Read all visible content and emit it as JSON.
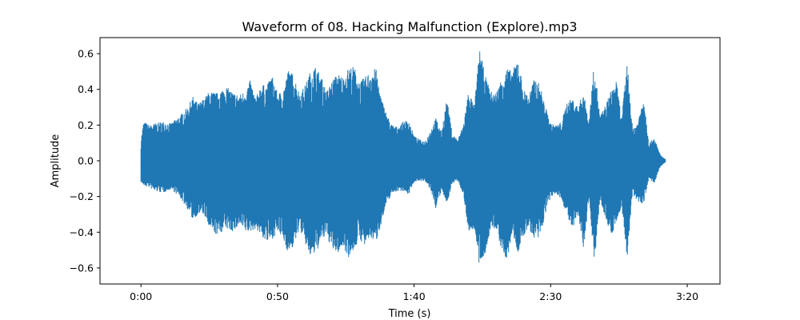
{
  "chart_data": {
    "type": "line",
    "title": "Waveform of 08. Hacking Malfunction (Explore).mp3",
    "xlabel": "Time (s)",
    "ylabel": "Amplitude",
    "xlim": [
      -15,
      212
    ],
    "ylim": [
      -0.69,
      0.69
    ],
    "line_color": "#1f77b4",
    "grid": false,
    "x_ticks": [
      {
        "value": 0,
        "label": "0:00"
      },
      {
        "value": 50,
        "label": "0:50"
      },
      {
        "value": 100,
        "label": "1:40"
      },
      {
        "value": 150,
        "label": "2:30"
      },
      {
        "value": 200,
        "label": "3:20"
      }
    ],
    "y_ticks": [
      {
        "value": 0.6,
        "label": "0.6"
      },
      {
        "value": 0.4,
        "label": "0.4"
      },
      {
        "value": 0.2,
        "label": "0.2"
      },
      {
        "value": 0.0,
        "label": "0.0"
      },
      {
        "value": -0.2,
        "label": "−0.2"
      },
      {
        "value": -0.4,
        "label": "−0.4"
      },
      {
        "value": -0.6,
        "label": "−0.6"
      }
    ],
    "series": [
      {
        "time_s": [
          0,
          1,
          3,
          5,
          8,
          11,
          14,
          17,
          19,
          21,
          23,
          25,
          28,
          31,
          34,
          36,
          38,
          40,
          42,
          44,
          46,
          48,
          50,
          52,
          54,
          56,
          58,
          60,
          62,
          64,
          66,
          68,
          70,
          72,
          74,
          76,
          78,
          80,
          82,
          84,
          86,
          88,
          90,
          92,
          94,
          96,
          98,
          100,
          102,
          104,
          106,
          108,
          110,
          112,
          114,
          116,
          118,
          120,
          122,
          124,
          126,
          128,
          130,
          132,
          134,
          136,
          138,
          140,
          142,
          144,
          146,
          148,
          150,
          152,
          154,
          156,
          158,
          160,
          162,
          164,
          166,
          168,
          170,
          172,
          174,
          176,
          178,
          180,
          182,
          184,
          186,
          188,
          189,
          190,
          191,
          192
        ],
        "envelope_max": [
          0.12,
          0.22,
          0.2,
          0.21,
          0.22,
          0.21,
          0.25,
          0.3,
          0.36,
          0.32,
          0.35,
          0.39,
          0.38,
          0.42,
          0.38,
          0.37,
          0.39,
          0.45,
          0.35,
          0.43,
          0.42,
          0.48,
          0.38,
          0.39,
          0.51,
          0.48,
          0.38,
          0.42,
          0.5,
          0.53,
          0.47,
          0.39,
          0.45,
          0.49,
          0.47,
          0.52,
          0.53,
          0.44,
          0.47,
          0.5,
          0.52,
          0.35,
          0.26,
          0.2,
          0.19,
          0.22,
          0.23,
          0.14,
          0.12,
          0.11,
          0.17,
          0.24,
          0.16,
          0.35,
          0.15,
          0.12,
          0.2,
          0.4,
          0.3,
          0.63,
          0.48,
          0.39,
          0.38,
          0.46,
          0.52,
          0.5,
          0.58,
          0.4,
          0.37,
          0.46,
          0.43,
          0.31,
          0.21,
          0.2,
          0.22,
          0.33,
          0.35,
          0.3,
          0.39,
          0.22,
          0.56,
          0.25,
          0.31,
          0.39,
          0.45,
          0.24,
          0.56,
          0.18,
          0.22,
          0.37,
          0.1,
          0.13,
          0.08,
          0.04,
          0.02,
          0.01
        ],
        "envelope_min": [
          -0.12,
          -0.14,
          -0.15,
          -0.17,
          -0.18,
          -0.16,
          -0.2,
          -0.27,
          -0.33,
          -0.3,
          -0.3,
          -0.38,
          -0.42,
          -0.38,
          -0.4,
          -0.36,
          -0.4,
          -0.4,
          -0.38,
          -0.42,
          -0.46,
          -0.44,
          -0.4,
          -0.44,
          -0.52,
          -0.48,
          -0.38,
          -0.46,
          -0.54,
          -0.52,
          -0.45,
          -0.42,
          -0.5,
          -0.52,
          -0.48,
          -0.54,
          -0.5,
          -0.44,
          -0.48,
          -0.43,
          -0.46,
          -0.35,
          -0.24,
          -0.18,
          -0.17,
          -0.17,
          -0.19,
          -0.12,
          -0.11,
          -0.12,
          -0.16,
          -0.27,
          -0.17,
          -0.24,
          -0.13,
          -0.11,
          -0.19,
          -0.4,
          -0.38,
          -0.61,
          -0.52,
          -0.39,
          -0.38,
          -0.5,
          -0.57,
          -0.4,
          -0.52,
          -0.43,
          -0.37,
          -0.45,
          -0.44,
          -0.3,
          -0.21,
          -0.18,
          -0.22,
          -0.3,
          -0.4,
          -0.3,
          -0.5,
          -0.22,
          -0.57,
          -0.23,
          -0.31,
          -0.42,
          -0.36,
          -0.25,
          -0.55,
          -0.19,
          -0.23,
          -0.24,
          -0.1,
          -0.13,
          -0.08,
          -0.04,
          -0.02,
          -0.01
        ]
      }
    ]
  }
}
